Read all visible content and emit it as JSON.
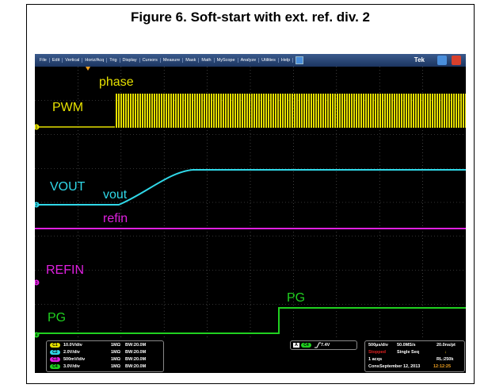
{
  "header": {
    "title": "Figure 6. Soft-start with ext. ref. div. 2"
  },
  "menu": {
    "items": [
      "File",
      "Edit",
      "Vertical",
      "Horiz/Acq",
      "Trig",
      "Display",
      "Cursors",
      "Measure",
      "Mask",
      "Math",
      "MyScope",
      "Analyze",
      "Utilities",
      "Help"
    ],
    "brand": "Tek"
  },
  "traces": [
    {
      "label": "PWM",
      "tag": "phase",
      "marker": "1"
    },
    {
      "label": "VOUT",
      "tag": "vout",
      "marker": "2"
    },
    {
      "label": "REFIN",
      "tag": "refin",
      "marker": "3"
    },
    {
      "label": "PG",
      "tag": "PG",
      "marker": "4"
    }
  ],
  "channels": [
    {
      "ch": "C1",
      "scale": "10.0V/div",
      "impedance": "1MΩ",
      "bandwidth": "BW:20.0M"
    },
    {
      "ch": "C2",
      "scale": "2.0V/div",
      "impedance": "1MΩ",
      "bandwidth": "BW:20.0M"
    },
    {
      "ch": "C3",
      "scale": "500mV/div",
      "impedance": "1MΩ",
      "bandwidth": "BW:20.0M"
    },
    {
      "ch": "C4",
      "scale": "3.0V/div",
      "impedance": "1MΩ",
      "bandwidth": "BW:20.0M"
    }
  ],
  "trigger": {
    "mode": "A",
    "source": "C4",
    "level": "7.4V"
  },
  "acquisition": {
    "timebase": "500µs/div",
    "sample_rate": "50.0MS/s",
    "resolution": "20.0ns/pt",
    "state": "Stopped",
    "sequence": "Single Seq",
    "acqs": "1 acqs",
    "record_length": "RL:250k",
    "cons": "Cons",
    "date": "September 12, 2013",
    "time": "12:12:25"
  }
}
